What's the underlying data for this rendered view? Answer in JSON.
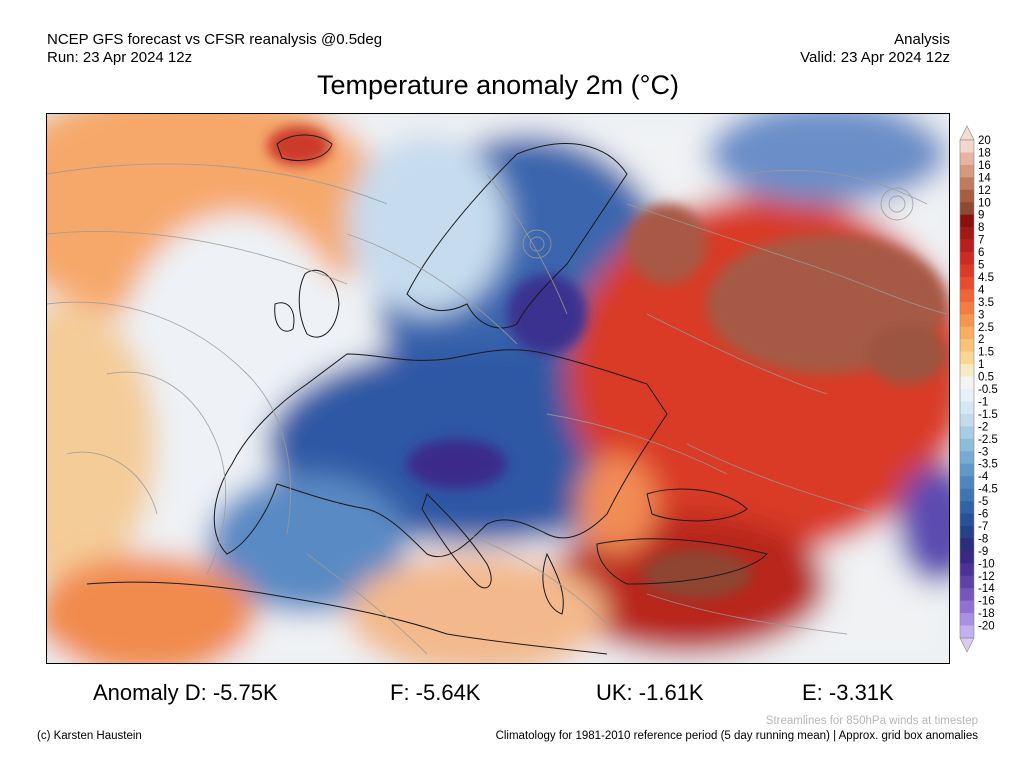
{
  "header": {
    "line1_left": "NCEP GFS forecast vs CFSR reanalysis @0.5deg",
    "line2_left": "Run: 23 Apr 2024 12z",
    "line1_right": "Analysis",
    "line2_right": "Valid: 23 Apr 2024 12z"
  },
  "title": "Temperature anomaly 2m (°C)",
  "stats": {
    "d": "Anomaly D: -5.75K",
    "f": "F: -5.64K",
    "uk": "UK: -1.61K",
    "e": "E: -3.31K"
  },
  "footer": {
    "streamlines_note": "Streamlines for 850hPa winds at timestep",
    "copyright": "(c) Karsten Haustein",
    "climatology_note": "Climatology for 1981-2010 reference period (5 day running mean) | Approx. grid box anomalies"
  },
  "colorbar": {
    "labels": [
      "20",
      "18",
      "16",
      "14",
      "12",
      "10",
      "9",
      "8",
      "7",
      "6",
      "5",
      "4.5",
      "4",
      "3.5",
      "3",
      "2.5",
      "2",
      "1.5",
      "1",
      "0.5",
      "-0.5",
      "-1",
      "-1.5",
      "-2",
      "-2.5",
      "-3",
      "-3.5",
      "-4",
      "-4.5",
      "-5",
      "-6",
      "-7",
      "-8",
      "-9",
      "-10",
      "-12",
      "-14",
      "-16",
      "-18",
      "-20"
    ],
    "colors": [
      "#f4d6cc",
      "#e6b4a0",
      "#d49a80",
      "#c07a60",
      "#a85c42",
      "#8c4a34",
      "#8a1010",
      "#a01818",
      "#b82020",
      "#cc2a22",
      "#dc3a28",
      "#e84c30",
      "#ef6438",
      "#f37c44",
      "#f59650",
      "#f7ae62",
      "#f8c47a",
      "#f9d896",
      "#f6ecc4",
      "#f4f4f4",
      "#e8f0f8",
      "#d6e6f4",
      "#c2dcee",
      "#a8cce6",
      "#90bcdc",
      "#78aad2",
      "#6298c8",
      "#4e86be",
      "#3e74b2",
      "#3262a6",
      "#2a509a",
      "#26408a",
      "#2a2e7c",
      "#3a2886",
      "#4c3294",
      "#5e42a6",
      "#7656bc",
      "#9070d0",
      "#aa90e0",
      "#c4b0ee"
    ],
    "min_color": "#d8ccf4",
    "max_color": "#f6dccc"
  },
  "map": {
    "region": "Europe",
    "field_colors": {
      "north_atlantic": "#f6a86a",
      "iceland": "#cc3a2a",
      "atlantic_neutral": "#eef2f6",
      "scandinavia": "#3a66ae",
      "central_europe": "#2f58a4",
      "alps": "#3a2a8a",
      "russia_warm": "#d93a26",
      "russia_brown": "#a65a44",
      "turkey": "#b8251c",
      "north_africa": "#f18a4e",
      "mediterranean": "#f3b98c"
    }
  }
}
